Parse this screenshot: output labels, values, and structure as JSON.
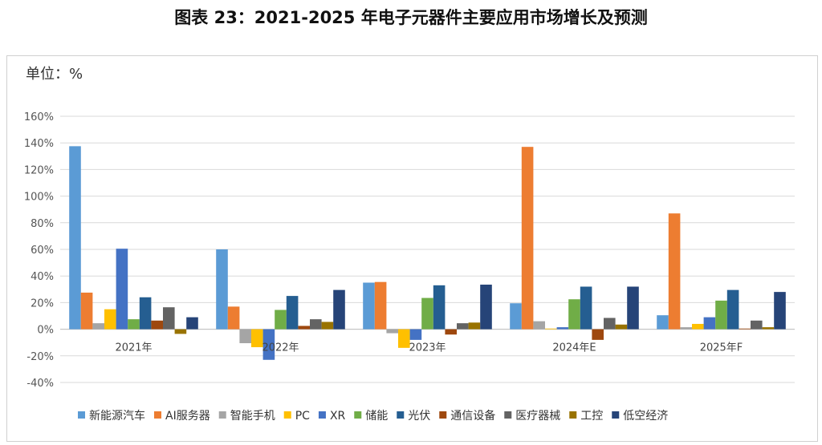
{
  "title": "图表 23：2021-2025 年电子元器件主要应用市场增长及预测",
  "unit_label": "单位：%",
  "chart_data": {
    "type": "bar",
    "title": "图表 23：2021-2025 年电子元器件主要应用市场增长及预测",
    "ylabel": "单位：%",
    "ylim": [
      -40,
      160
    ],
    "ytick_step": 20,
    "ytick_format": "percent",
    "grid": true,
    "legend_position": "bottom",
    "categories": [
      "2021年",
      "2022年",
      "2023年",
      "2024年E",
      "2025年F"
    ],
    "series": [
      {
        "name": "新能源汽车",
        "color": "#5B9BD5",
        "values": [
          137.5,
          60,
          35,
          19.5,
          10.5
        ]
      },
      {
        "name": "AI服务器",
        "color": "#ED7D31",
        "values": [
          27.5,
          17,
          35.5,
          137,
          87
        ]
      },
      {
        "name": "智能手机",
        "color": "#A5A5A5",
        "values": [
          4.5,
          -10.5,
          -3,
          6,
          1.5
        ]
      },
      {
        "name": "PC",
        "color": "#FFC000",
        "values": [
          15,
          -13.5,
          -14,
          0.5,
          4
        ]
      },
      {
        "name": "XR",
        "color": "#4472C4",
        "values": [
          60.5,
          -23,
          -8,
          1.5,
          9
        ]
      },
      {
        "name": "储能",
        "color": "#70AD47",
        "values": [
          7.5,
          14.5,
          23.5,
          22.5,
          21.5
        ]
      },
      {
        "name": "光伏",
        "color": "#255E91",
        "values": [
          24,
          25,
          33,
          32,
          29.5
        ]
      },
      {
        "name": "通信设备",
        "color": "#9E480E",
        "values": [
          6.5,
          2.5,
          -4,
          -8,
          0.5
        ]
      },
      {
        "name": "医疗器械",
        "color": "#636363",
        "values": [
          16.5,
          7.5,
          4.5,
          8.5,
          6.5
        ]
      },
      {
        "name": "工控",
        "color": "#997300",
        "values": [
          -3.5,
          5.5,
          5,
          3.5,
          1.5
        ]
      },
      {
        "name": "低空经济",
        "color": "#264478",
        "values": [
          9,
          29.5,
          33.5,
          32,
          28
        ]
      }
    ]
  }
}
